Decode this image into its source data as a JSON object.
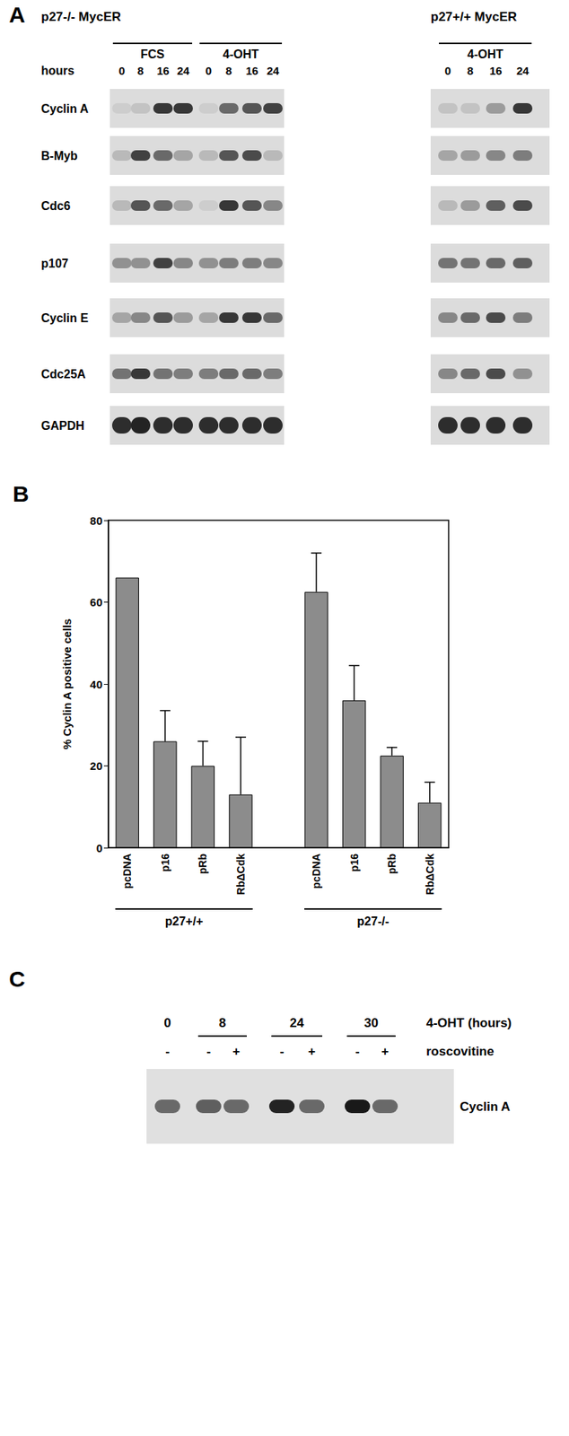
{
  "panel_a": {
    "label": "A",
    "lane_header": "hours",
    "blots": [
      {
        "title": "p27-/- MycER",
        "groups": [
          {
            "label": "FCS",
            "lanes": [
              "0",
              "8",
              "16",
              "24"
            ]
          },
          {
            "label": "4-OHT",
            "lanes": [
              "0",
              "8",
              "16",
              "24"
            ]
          }
        ]
      },
      {
        "title": "p27+/+ MycER",
        "groups": [
          {
            "label": "4-OHT",
            "lanes": [
              "0",
              "8",
              "16",
              "24"
            ]
          }
        ]
      }
    ],
    "rows": [
      {
        "name": "Cyclin A",
        "intensity": [
          [
            0.1,
            0.15,
            0.85,
            0.85,
            0.1,
            0.6,
            0.7,
            0.8
          ],
          [
            0.15,
            0.15,
            0.35,
            0.85
          ]
        ]
      },
      {
        "name": "B-Myb",
        "intensity": [
          [
            0.2,
            0.8,
            0.6,
            0.3,
            0.2,
            0.7,
            0.75,
            0.2
          ],
          [
            0.3,
            0.35,
            0.45,
            0.5
          ]
        ]
      },
      {
        "name": "Cdc6",
        "intensity": [
          [
            0.2,
            0.7,
            0.6,
            0.3,
            0.1,
            0.85,
            0.7,
            0.45
          ],
          [
            0.2,
            0.35,
            0.65,
            0.75
          ]
        ]
      },
      {
        "name": "p107",
        "intensity": [
          [
            0.4,
            0.4,
            0.8,
            0.45,
            0.4,
            0.5,
            0.5,
            0.45
          ],
          [
            0.55,
            0.55,
            0.6,
            0.65
          ]
        ]
      },
      {
        "name": "Cyclin E",
        "intensity": [
          [
            0.3,
            0.45,
            0.7,
            0.35,
            0.3,
            0.85,
            0.85,
            0.6
          ],
          [
            0.45,
            0.6,
            0.75,
            0.5
          ]
        ]
      },
      {
        "name": "Cdc25A",
        "intensity": [
          [
            0.55,
            0.85,
            0.55,
            0.5,
            0.5,
            0.6,
            0.6,
            0.5
          ],
          [
            0.45,
            0.6,
            0.75,
            0.4
          ]
        ]
      },
      {
        "name": "GAPDH",
        "intensity": [
          [
            0.9,
            0.95,
            0.9,
            0.9,
            0.9,
            0.9,
            0.9,
            0.9
          ],
          [
            0.9,
            0.9,
            0.9,
            0.9
          ]
        ]
      }
    ]
  },
  "chart_data": {
    "type": "bar",
    "title": "B",
    "categories": [
      "pcDNA",
      "p16",
      "pRb",
      "RbΔCdk",
      null,
      "pcDNA",
      "p16",
      "pRb",
      "RbΔCdk"
    ],
    "values": [
      66,
      26,
      20,
      13,
      null,
      62.5,
      36,
      22.5,
      11
    ],
    "error": [
      null,
      7.5,
      6,
      14,
      null,
      9.5,
      8.5,
      2,
      5
    ],
    "color": "#8c8c8c",
    "ylabel": "% Cyclin A positive cells",
    "ylim": [
      0,
      80
    ],
    "yticks": [
      0,
      20,
      40,
      60,
      80
    ],
    "grid": false,
    "annotations": [
      "p27+/+",
      "p27-/-"
    ]
  },
  "panel_c": {
    "label": "C",
    "header": "4-OHT (hours)",
    "treatment_label": "roscovitine",
    "band": "Cyclin A",
    "lane_groups": [
      {
        "label": "0",
        "treatments": [
          "-"
        ]
      },
      {
        "label": "8",
        "treatments": [
          "-",
          "+"
        ]
      },
      {
        "label": "24",
        "treatments": [
          "-",
          "+"
        ]
      },
      {
        "label": "30",
        "treatments": [
          "-",
          "+"
        ]
      }
    ],
    "intensity": [
      0.6,
      0.65,
      0.6,
      0.95,
      0.6,
      1.0,
      0.6
    ]
  }
}
